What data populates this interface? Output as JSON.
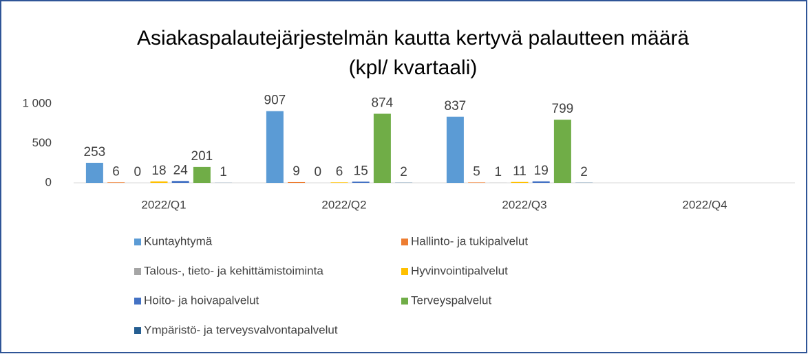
{
  "chart_data": {
    "type": "bar",
    "title": [
      "Asiakaspalautejärjestelmän kautta kertyvä palautteen määrä",
      "(kpl/ kvartaali)"
    ],
    "categories": [
      "2022/Q1",
      "2022/Q2",
      "2022/Q3",
      "2022/Q4"
    ],
    "series": [
      {
        "name": "Kuntayhtymä",
        "color": "#5b9bd5",
        "values": [
          253,
          907,
          837,
          null
        ]
      },
      {
        "name": "Hallinto- ja tukipalvelut",
        "color": "#ed7d31",
        "values": [
          6,
          9,
          5,
          null
        ]
      },
      {
        "name": "Talous-, tieto- ja kehittämistoiminta",
        "color": "#a5a5a5",
        "values": [
          0,
          0,
          1,
          null
        ]
      },
      {
        "name": "Hyvinvointipalvelut",
        "color": "#ffc000",
        "values": [
          18,
          6,
          11,
          null
        ]
      },
      {
        "name": "Hoito- ja hoivapalvelut",
        "color": "#4472c4",
        "values": [
          24,
          15,
          19,
          null
        ]
      },
      {
        "name": "Terveyspalvelut",
        "color": "#70ad47",
        "values": [
          201,
          874,
          799,
          null
        ]
      },
      {
        "name": "Ympäristö- ja terveysvalvontapalvelut",
        "color": "#255e91",
        "values": [
          1,
          2,
          2,
          null
        ]
      }
    ],
    "ylim": [
      0,
      1000
    ],
    "yticks": [
      0,
      500,
      {
        "value": 1000,
        "label": "1 000"
      }
    ],
    "grid": false
  }
}
